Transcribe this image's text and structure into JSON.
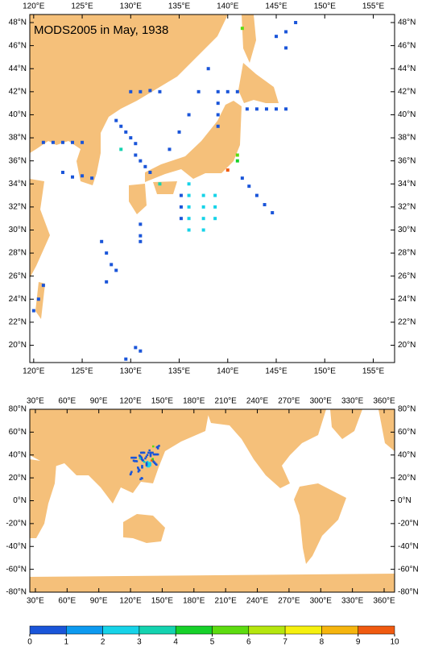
{
  "title": "MODS2005 in May, 1938",
  "maps": [
    {
      "xlim": [
        119.6,
        157.2
      ],
      "ylim": [
        18.5,
        48.7
      ],
      "xticks": [
        {
          "value": 120,
          "label": "120°E"
        },
        {
          "value": 125,
          "label": "125°E"
        },
        {
          "value": 130,
          "label": "130°E"
        },
        {
          "value": 135,
          "label": "135°E"
        },
        {
          "value": 140,
          "label": "140°E"
        },
        {
          "value": 145,
          "label": "145°E"
        },
        {
          "value": 150,
          "label": "150°E"
        },
        {
          "value": 155,
          "label": "155°E"
        }
      ],
      "yticks": [
        {
          "value": 20,
          "label": "20°N"
        },
        {
          "value": 22,
          "label": "22°N"
        },
        {
          "value": 24,
          "label": "24°N"
        },
        {
          "value": 26,
          "label": "26°N"
        },
        {
          "value": 28,
          "label": "28°N"
        },
        {
          "value": 30,
          "label": "30°N"
        },
        {
          "value": 32,
          "label": "32°N"
        },
        {
          "value": 34,
          "label": "34°N"
        },
        {
          "value": 36,
          "label": "36°N"
        },
        {
          "value": 38,
          "label": "38°N"
        },
        {
          "value": 40,
          "label": "40°N"
        },
        {
          "value": 42,
          "label": "42°N"
        },
        {
          "value": 44,
          "label": "44°N"
        },
        {
          "value": 46,
          "label": "46°N"
        },
        {
          "value": 48,
          "label": "48°N"
        }
      ]
    },
    {
      "xlim": [
        24.7,
        369.9
      ],
      "ylim": [
        -80,
        80
      ],
      "xticks": [
        {
          "value": 30,
          "label": "30°E"
        },
        {
          "value": 60,
          "label": "60°E"
        },
        {
          "value": 90,
          "label": "90°E"
        },
        {
          "value": 120,
          "label": "120°E"
        },
        {
          "value": 150,
          "label": "150°E"
        },
        {
          "value": 180,
          "label": "180°E"
        },
        {
          "value": 210,
          "label": "210°E"
        },
        {
          "value": 240,
          "label": "240°E"
        },
        {
          "value": 270,
          "label": "270°E"
        },
        {
          "value": 300,
          "label": "300°E"
        },
        {
          "value": 330,
          "label": "330°E"
        },
        {
          "value": 360,
          "label": "360°E"
        }
      ],
      "yticks": [
        {
          "value": -80,
          "label": "-80°N"
        },
        {
          "value": -60,
          "label": "-60°N"
        },
        {
          "value": -40,
          "label": "-40°N"
        },
        {
          "value": -20,
          "label": "-20°N"
        },
        {
          "value": 0,
          "label": "0°N"
        },
        {
          "value": 20,
          "label": "20°N"
        },
        {
          "value": 40,
          "label": "40°N"
        },
        {
          "value": 60,
          "label": "60°N"
        },
        {
          "value": 80,
          "label": "80°N"
        }
      ]
    }
  ],
  "points": {
    "lon": [
      121,
      122,
      123,
      124,
      125,
      123,
      124,
      125,
      126,
      128.5,
      129,
      129.5,
      130,
      130.5,
      130.5,
      131,
      131.5,
      132,
      130,
      131,
      132,
      133,
      142,
      143,
      144,
      145,
      146,
      139,
      140,
      141,
      139,
      139,
      139,
      141.5,
      142.2,
      143,
      143.8,
      144.6,
      134,
      135,
      136,
      137,
      138,
      136,
      136,
      136,
      136,
      136,
      137.5,
      137.5,
      137.5,
      137.5,
      138.7,
      138.7,
      138.7,
      135.2,
      135.2,
      135.2,
      131,
      131,
      131,
      127,
      127.5,
      128,
      128.5,
      127.5,
      120,
      120.5,
      121,
      129.5,
      130.5,
      131,
      141.5,
      141,
      141,
      140,
      129,
      133,
      145,
      146,
      147,
      146
    ],
    "lat": [
      37.6,
      37.6,
      37.6,
      37.6,
      37.6,
      35,
      34.6,
      34.7,
      34.5,
      39.5,
      39,
      38.5,
      38,
      37.5,
      36.5,
      36,
      35.5,
      35,
      42,
      42,
      42.1,
      42,
      40.5,
      40.5,
      40.5,
      40.5,
      40.5,
      42,
      42,
      42,
      41,
      40,
      39,
      34.5,
      33.8,
      33,
      32.2,
      31.5,
      37,
      38.5,
      40,
      42,
      44,
      34,
      33,
      32,
      31,
      30,
      33,
      32,
      31,
      30,
      33,
      32,
      31,
      33,
      32,
      31,
      30.5,
      29.5,
      29,
      29,
      28,
      27,
      26.5,
      25.5,
      23,
      24,
      25.2,
      18.8,
      19.8,
      19.5,
      47.5,
      36.5,
      36,
      35.2,
      37,
      34,
      46.8,
      47.2,
      48,
      45.8
    ],
    "values": [
      0.5,
      0.5,
      0.5,
      0.5,
      0.5,
      0.5,
      0.5,
      0.5,
      0.5,
      0.5,
      0.5,
      0.5,
      0.5,
      0.5,
      0.5,
      0.5,
      0.5,
      0.5,
      0.5,
      0.5,
      0.5,
      0.5,
      0.5,
      0.5,
      0.5,
      0.5,
      0.5,
      0.5,
      0.5,
      0.5,
      0.5,
      0.5,
      0.5,
      0.5,
      0.5,
      0.5,
      0.5,
      0.5,
      0.5,
      0.5,
      0.5,
      0.5,
      0.5,
      2.5,
      2.5,
      2.5,
      2.5,
      2.5,
      2.5,
      2.5,
      2.5,
      2.5,
      2.5,
      2.5,
      2.5,
      0.5,
      0.5,
      0.5,
      0.5,
      0.5,
      0.5,
      0.5,
      0.5,
      0.5,
      0.5,
      0.5,
      0.5,
      0.5,
      0.5,
      0.5,
      0.5,
      0.5,
      5.5,
      5.5,
      4.5,
      9.5,
      3.5,
      3.5,
      0.5,
      0.5,
      0.5,
      0.5
    ]
  },
  "colorbar": {
    "ticks": [
      0,
      1,
      2,
      3,
      4,
      5,
      6,
      7,
      8,
      9,
      10
    ],
    "colors": [
      "#1a55d9",
      "#0d9af0",
      "#16d3e8",
      "#14d3b0",
      "#16d12a",
      "#5ddc10",
      "#b5e60e",
      "#f5f00e",
      "#f5b50e",
      "#f05a10"
    ]
  }
}
